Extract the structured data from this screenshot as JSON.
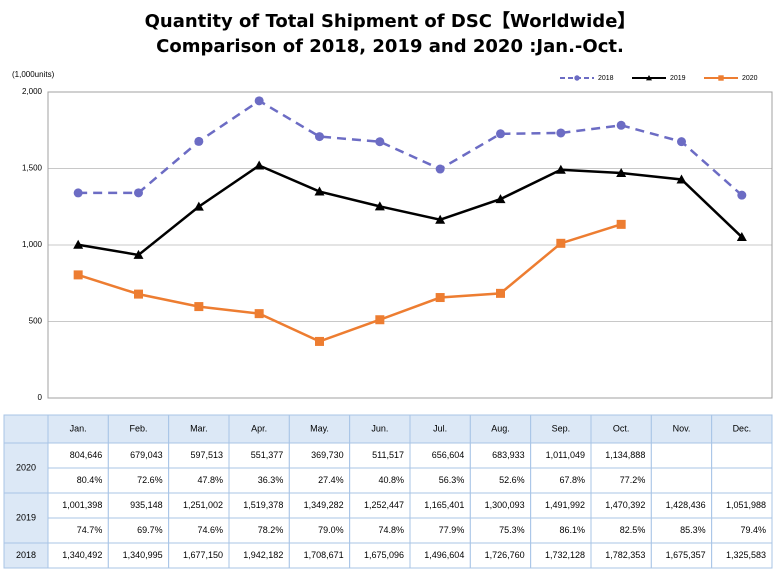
{
  "chart_data": {
    "type": "line",
    "title": "Quantity of Total Shipment of DSC【Worldwide】",
    "subtitle": "Comparison of 2018, 2019 and 2020 :Jan.-Oct.",
    "ylabel": "(1,000units)",
    "categories": [
      "Jan.",
      "Feb.",
      "Mar.",
      "Apr.",
      "May.",
      "Jun.",
      "Jul.",
      "Aug.",
      "Sep.",
      "Oct.",
      "Nov.",
      "Dec."
    ],
    "series": [
      {
        "name": "2018",
        "color": "#6c6cc4",
        "marker": "circle",
        "dashed": true,
        "values": [
          1340.492,
          1340.995,
          1677.15,
          1942.182,
          1708.671,
          1675.096,
          1496.604,
          1726.76,
          1732.128,
          1782.353,
          1675.357,
          1325.583
        ]
      },
      {
        "name": "2019",
        "color": "#000000",
        "marker": "triangle",
        "dashed": false,
        "values": [
          1001.398,
          935.148,
          1251.002,
          1519.378,
          1349.282,
          1252.447,
          1165.401,
          1300.093,
          1491.992,
          1470.392,
          1428.436,
          1051.988
        ]
      },
      {
        "name": "2020",
        "color": "#ed7d31",
        "marker": "square",
        "dashed": false,
        "values": [
          804.646,
          679.043,
          597.513,
          551.377,
          369.73,
          511.517,
          656.604,
          683.933,
          1011.049,
          1134.888,
          null,
          null
        ]
      }
    ],
    "ylim": [
      0,
      2000
    ],
    "yticks": [
      0,
      500,
      {
        "value": 1000,
        "label": "1,000"
      },
      {
        "value": 1500,
        "label": "1,500"
      },
      {
        "value": 2000,
        "label": "2,000"
      }
    ],
    "grid": true,
    "legend": "top-right"
  },
  "table": {
    "rows": [
      {
        "label": "2020",
        "values": [
          "804,646",
          "679,043",
          "597,513",
          "551,377",
          "369,730",
          "511,517",
          "656,604",
          "683,933",
          "1,011,049",
          "1,134,888"
        ],
        "ratios": [
          "80.4%",
          "72.6%",
          "47.8%",
          "36.3%",
          "27.4%",
          "40.8%",
          "56.3%",
          "52.6%",
          "67.8%",
          "77.2%"
        ]
      },
      {
        "label": "2019",
        "values": [
          "1,001,398",
          "935,148",
          "1,251,002",
          "1,519,378",
          "1,349,282",
          "1,252,447",
          "1,165,401",
          "1,300,093",
          "1,491,992",
          "1,470,392",
          "1,428,436",
          "1,051,988"
        ],
        "ratios": [
          "74.7%",
          "69.7%",
          "74.6%",
          "78.2%",
          "79.0%",
          "74.8%",
          "77.9%",
          "75.3%",
          "86.1%",
          "82.5%",
          "85.3%",
          "79.4%"
        ]
      },
      {
        "label": "2018",
        "values": [
          "1,340,492",
          "1,340,995",
          "1,677,150",
          "1,942,182",
          "1,708,671",
          "1,675,096",
          "1,496,604",
          "1,726,760",
          "1,732,128",
          "1,782,353",
          "1,675,357",
          "1,325,583"
        ]
      }
    ]
  }
}
